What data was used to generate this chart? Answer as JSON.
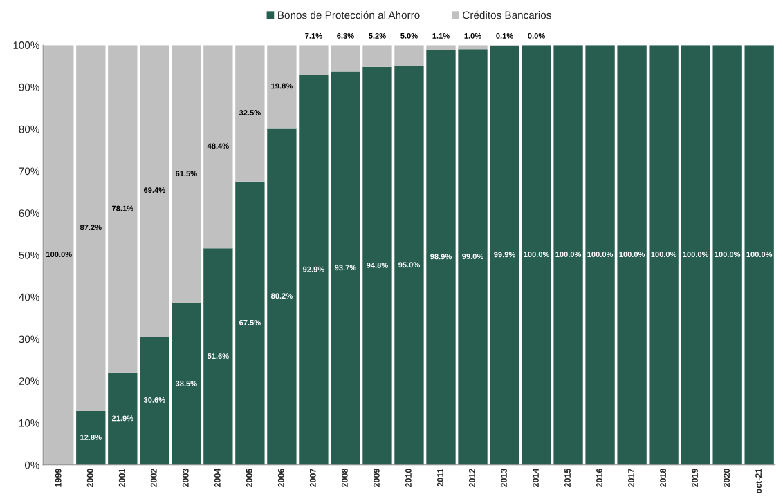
{
  "chart_data": {
    "type": "bar",
    "stacked": true,
    "categories": [
      "1999",
      "2000",
      "2001",
      "2002",
      "2003",
      "2004",
      "2005",
      "2006",
      "2007",
      "2008",
      "2009",
      "2010",
      "2011",
      "2012",
      "2013",
      "2014",
      "2015",
      "2016",
      "2017",
      "2018",
      "2019",
      "2020",
      "oct-21"
    ],
    "series": [
      {
        "name": "Bonos de Protección al Ahorro",
        "color": "#275e4f",
        "values": [
          0,
          12.8,
          21.9,
          30.6,
          38.5,
          51.6,
          67.5,
          80.2,
          92.9,
          93.7,
          94.8,
          95.0,
          98.9,
          99.0,
          99.9,
          100.0,
          100.0,
          100.0,
          100.0,
          100.0,
          100.0,
          100.0,
          100.0
        ],
        "value_labels": [
          null,
          "12.8%",
          "21.9%",
          "30.6%",
          "38.5%",
          "51.6%",
          "67.5%",
          "80.2%",
          "92.9%",
          "93.7%",
          "94.8%",
          "95.0%",
          "98.9%",
          "99.0%",
          "99.9%",
          "100.0%",
          "100.0%",
          "100.0%",
          "100.0%",
          "100.0%",
          "100.0%",
          "100.0%",
          "100.0%"
        ]
      },
      {
        "name": "Créditos Bancarios",
        "color": "#c0c0c0",
        "values": [
          100.0,
          87.2,
          78.1,
          69.4,
          61.5,
          48.4,
          32.5,
          19.8,
          7.1,
          6.3,
          5.2,
          5.0,
          1.1,
          1.0,
          0.1,
          0.0,
          null,
          null,
          null,
          null,
          null,
          null,
          null
        ],
        "value_labels": [
          "100.0%",
          "87.2%",
          "78.1%",
          "69.4%",
          "61.5%",
          "48.4%",
          "32.5%",
          "19.8%",
          "7.1%",
          "6.3%",
          "5.2%",
          "5.0%",
          "1.1%",
          "1.0%",
          "0.1%",
          "0.0%",
          null,
          null,
          null,
          null,
          null,
          null,
          null
        ]
      }
    ],
    "ylim": [
      0,
      100
    ],
    "yticks": [
      {
        "value": 0,
        "label": "0%"
      },
      {
        "value": 10,
        "label": "10%"
      },
      {
        "value": 20,
        "label": "20%"
      },
      {
        "value": 30,
        "label": "30%"
      },
      {
        "value": 40,
        "label": "40%"
      },
      {
        "value": 50,
        "label": "50%"
      },
      {
        "value": 60,
        "label": "60%"
      },
      {
        "value": 70,
        "label": "70%"
      },
      {
        "value": 80,
        "label": "80%"
      },
      {
        "value": 90,
        "label": "90%"
      },
      {
        "value": 100,
        "label": "100%"
      }
    ],
    "grid": false,
    "legend": "top"
  }
}
